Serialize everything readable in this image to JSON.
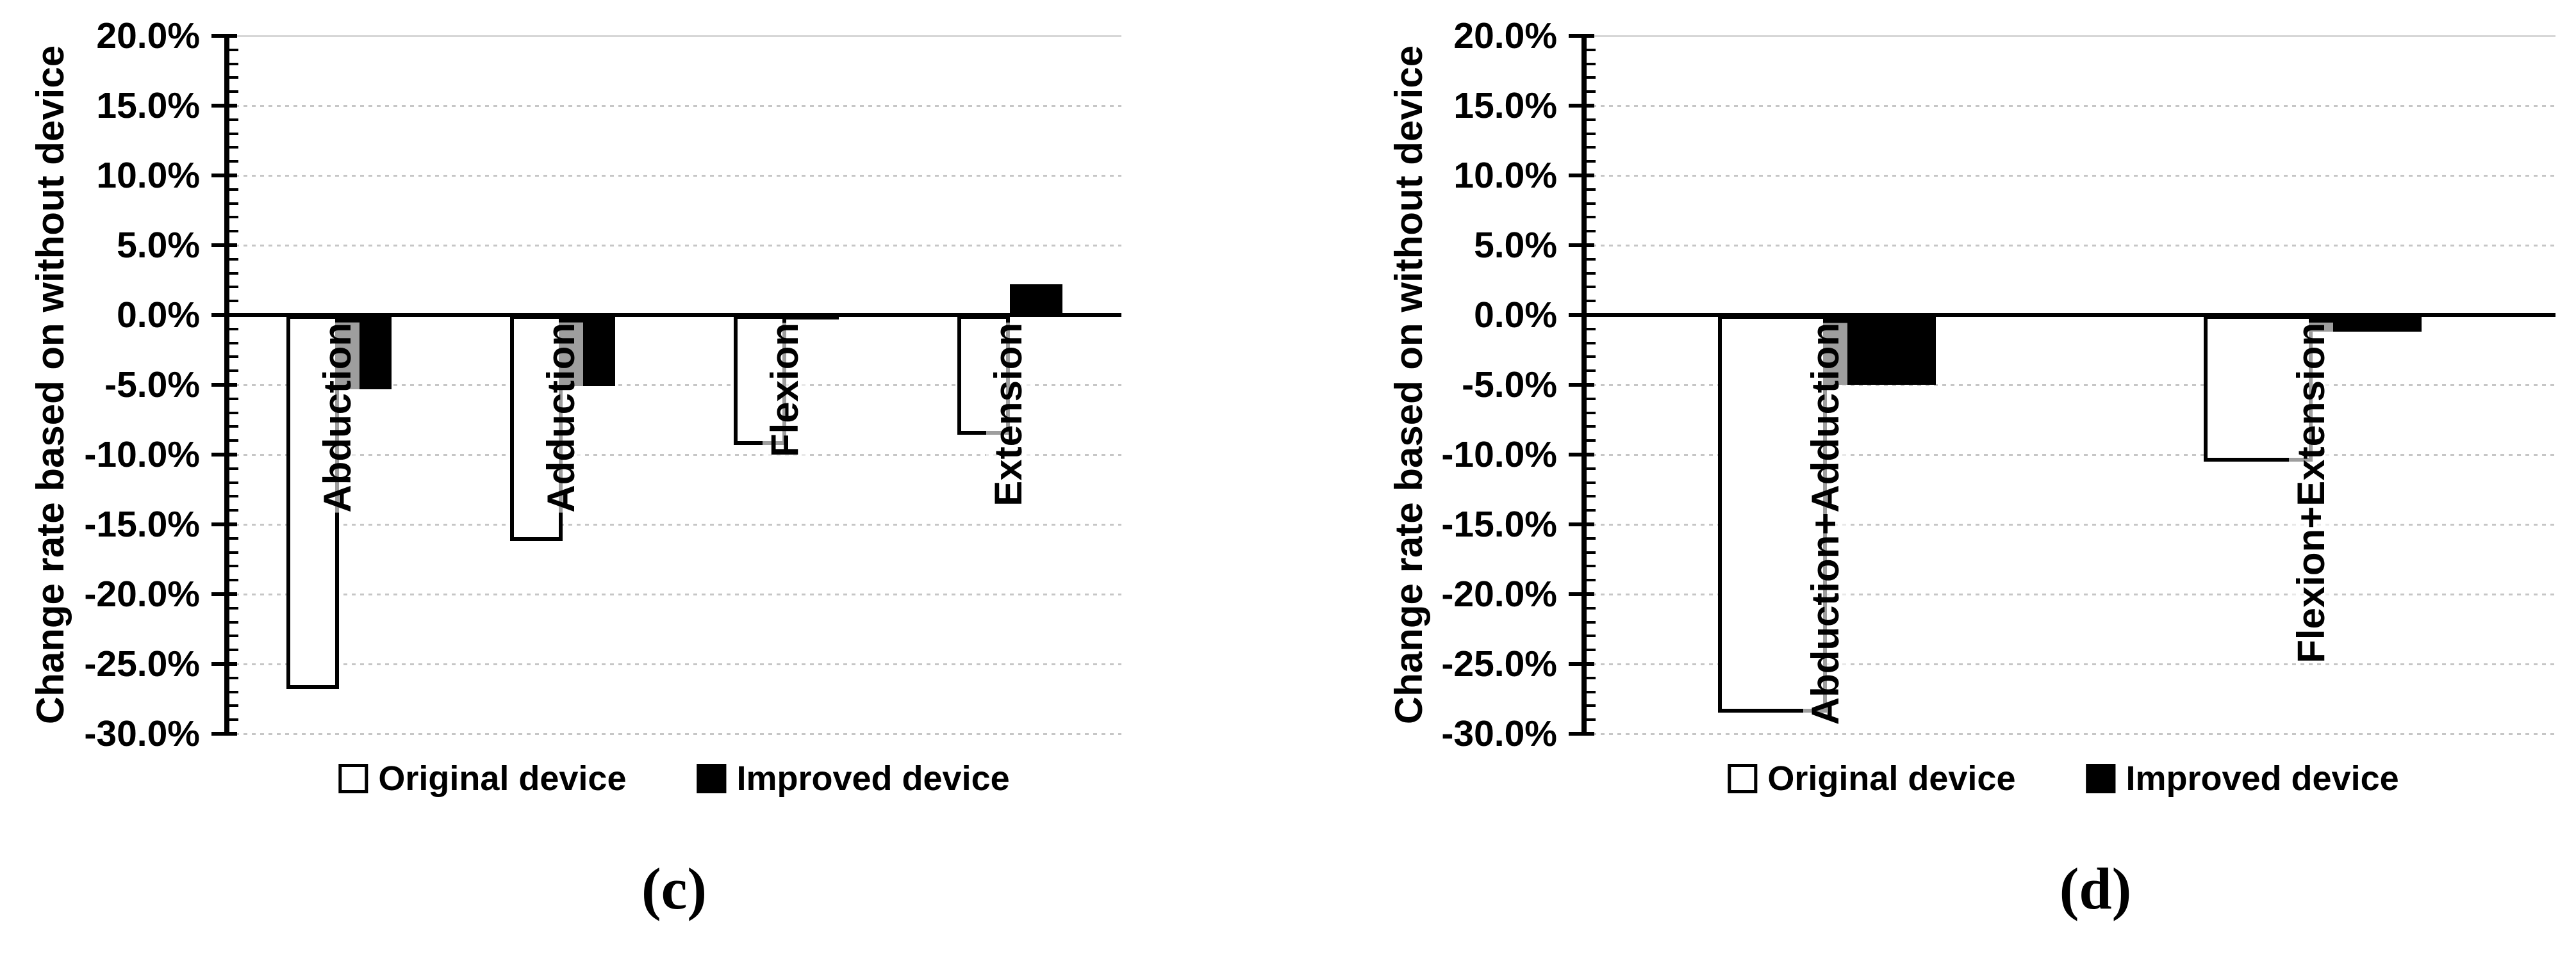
{
  "figure": {
    "background": "#ffffff",
    "y_axis_title": "Change rate based on without device",
    "y_tick_labels": [
      "20.0%",
      "15.0%",
      "10.0%",
      "5.0%",
      "0.0%",
      "-5.0%",
      "-10.0%",
      "-15.0%",
      "-20.0%",
      "-25.0%",
      "-30.0%"
    ],
    "legend": {
      "position": "bottom",
      "items": [
        {
          "label": "Original device",
          "fill": "#ffffff",
          "border": "#000000"
        },
        {
          "label": "Improved device",
          "fill": "#000000",
          "border": "#000000"
        }
      ]
    },
    "colors": {
      "axis": "#000000",
      "gridline": "#c6c6c6",
      "bar_original_fill": "#ffffff",
      "bar_improved_fill": "#000000",
      "category_label_background": "rgba(255,255,255,0.62)"
    }
  },
  "chart_data": [
    {
      "type": "bar",
      "caption": "(c)",
      "title": "",
      "xlabel": "",
      "ylabel": "Change rate based on without device",
      "ylim": [
        -30,
        20
      ],
      "ytick_step": 5,
      "yminor_step": 1,
      "grid": true,
      "legend_position": "bottom",
      "categories": [
        "Abduction",
        "Adduction",
        "Flexion",
        "Extension"
      ],
      "series": [
        {
          "name": "Original device",
          "fill": "#ffffff",
          "values": [
            -26.8,
            -16.2,
            -9.3,
            -8.6
          ]
        },
        {
          "name": "Improved device",
          "fill": "#000000",
          "values": [
            -5.3,
            -5.1,
            -0.3,
            2.2
          ]
        }
      ]
    },
    {
      "type": "bar",
      "caption": "(d)",
      "title": "",
      "xlabel": "",
      "ylabel": "Change rate based on without device",
      "ylim": [
        -30,
        20
      ],
      "ytick_step": 5,
      "yminor_step": 1,
      "grid": true,
      "legend_position": "bottom",
      "categories": [
        "Abduction+Adduction",
        "Flexion+Extension"
      ],
      "series": [
        {
          "name": "Original device",
          "fill": "#ffffff",
          "values": [
            -28.5,
            -10.5
          ]
        },
        {
          "name": "Improved device",
          "fill": "#000000",
          "values": [
            -5.0,
            -1.2
          ]
        }
      ]
    }
  ]
}
